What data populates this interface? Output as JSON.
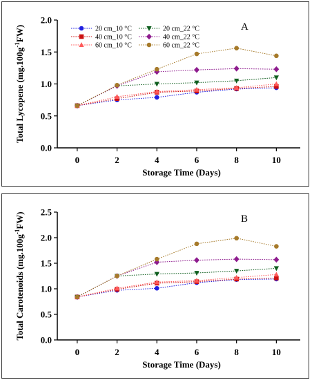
{
  "legend": [
    {
      "name": "20 cm_10 °C",
      "color": "#1f1fe0",
      "marker": "circle"
    },
    {
      "name": "40 cm_10 °C",
      "color": "#cc1111",
      "marker": "square"
    },
    {
      "name": "60 cm_10 °C",
      "color": "#ff5a5a",
      "marker": "triangle-up"
    },
    {
      "name": "20 cm_22 °C",
      "color": "#0f5e1e",
      "marker": "triangle-down"
    },
    {
      "name": "40 cm_22 °C",
      "color": "#8e1b8e",
      "marker": "diamond"
    },
    {
      "name": "60 cm_22 °C",
      "color": "#a67a2a",
      "marker": "circle"
    }
  ],
  "chart_data": [
    {
      "type": "line",
      "panel_label": "A",
      "xlabel": "Storage Time (Days)",
      "ylabel": {
        "prefix": "Total Lycopene (mg.100g",
        "sup": "-1",
        "suffix": "FW)"
      },
      "x": [
        0,
        2,
        4,
        6,
        8,
        10
      ],
      "x_ticks": [
        "0",
        "2",
        "4",
        "6",
        "8",
        "10"
      ],
      "y_ticks": [
        "0.0",
        "0.5",
        "1.0",
        "1.5",
        "2.0"
      ],
      "xlim": [
        -1,
        11.2
      ],
      "ylim": [
        0,
        2.0
      ],
      "grid": false,
      "legend_position": "top-left",
      "series": [
        {
          "name": "20 cm_10 °C",
          "values": [
            0.66,
            0.75,
            0.79,
            0.87,
            0.92,
            0.94
          ]
        },
        {
          "name": "40 cm_10 °C",
          "values": [
            0.66,
            0.77,
            0.87,
            0.89,
            0.93,
            0.96
          ]
        },
        {
          "name": "60 cm_10 °C",
          "values": [
            0.66,
            0.8,
            0.88,
            0.91,
            0.94,
            1.0
          ]
        },
        {
          "name": "20 cm_22 °C",
          "values": [
            0.66,
            0.97,
            1.0,
            1.02,
            1.05,
            1.1
          ]
        },
        {
          "name": "40 cm_22 °C",
          "values": [
            0.66,
            0.97,
            1.19,
            1.22,
            1.24,
            1.23
          ]
        },
        {
          "name": "60 cm_22 °C",
          "values": [
            0.66,
            0.98,
            1.23,
            1.47,
            1.56,
            1.44
          ]
        }
      ]
    },
    {
      "type": "line",
      "panel_label": "B",
      "xlabel": "Storage Time (Days)",
      "ylabel": {
        "prefix": "Total Carotenoids (mg.100g",
        "sup": "-1",
        "suffix": "FW)"
      },
      "x": [
        0,
        2,
        4,
        6,
        8,
        10
      ],
      "x_ticks": [
        "0",
        "2",
        "4",
        "6",
        "8",
        "10"
      ],
      "y_ticks": [
        "0.0",
        "0.5",
        "1.0",
        "1.5",
        "2.0",
        "2.5"
      ],
      "xlim": [
        -1,
        11.2
      ],
      "ylim": [
        0,
        2.5
      ],
      "grid": false,
      "series": [
        {
          "name": "20 cm_10 °C",
          "values": [
            0.84,
            0.97,
            1.01,
            1.12,
            1.18,
            1.19
          ]
        },
        {
          "name": "40 cm_10 °C",
          "values": [
            0.84,
            0.99,
            1.11,
            1.14,
            1.19,
            1.21
          ]
        },
        {
          "name": "60 cm_10 °C",
          "values": [
            0.84,
            1.01,
            1.13,
            1.16,
            1.22,
            1.28
          ]
        },
        {
          "name": "20 cm_22 °C",
          "values": [
            0.84,
            1.25,
            1.29,
            1.31,
            1.35,
            1.4
          ]
        },
        {
          "name": "40 cm_22 °C",
          "values": [
            0.84,
            1.25,
            1.52,
            1.56,
            1.58,
            1.57
          ]
        },
        {
          "name": "60 cm_22 °C",
          "values": [
            0.84,
            1.25,
            1.58,
            1.88,
            1.99,
            1.83
          ]
        }
      ]
    }
  ]
}
